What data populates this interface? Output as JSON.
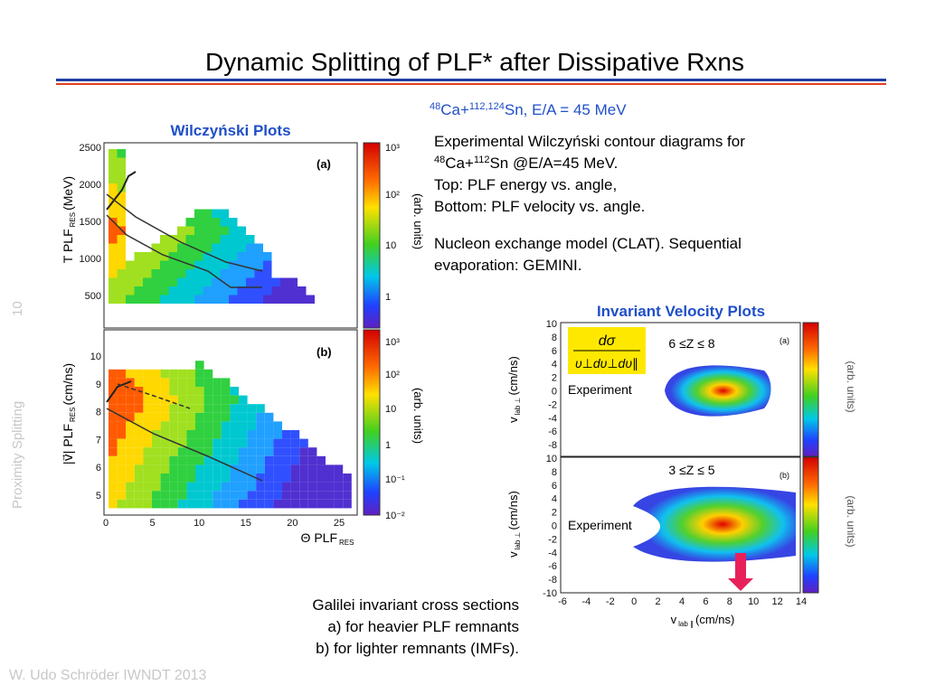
{
  "title": "Dynamic Splitting of PLF* after Dissipative Rxns",
  "reaction": {
    "a1": "48",
    "t1": "Ca+",
    "a2": "112,124",
    "t2": "Sn, E/A = 45 MeV"
  },
  "left_heading": "Wilczyński Plots",
  "description": {
    "line1": "Experimental Wilczyński contour diagrams for",
    "line2": {
      "a1": "48",
      "t1": "Ca+",
      "a2": "112",
      "t2": "Sn @E/A=45 MeV."
    },
    "line3": "Top: PLF energy vs. angle,",
    "line4": "Bottom: PLF velocity vs. angle."
  },
  "model_text": [
    "Nucleon exchange model (CLAT). Sequential",
    "evaporation: GEMINI."
  ],
  "right_heading": "Invariant Velocity Plots",
  "caption": [
    "Galilei invariant cross sections",
    "a) for heavier PLF remnants",
    "b) for lighter remnants (IMFs)."
  ],
  "side_label": "Proximity Splitting",
  "page_number": "10",
  "footer": "W. Udo Schröder IWNDT 2013",
  "wilczynski": {
    "top": {
      "ylabel": "T PLF",
      "ysub": "RES",
      "yunit": "(MeV)",
      "yticks": [
        2500,
        2000,
        1500,
        1000,
        500
      ],
      "panel": "(a)",
      "cbar": [
        "10³",
        "10²",
        "10",
        "1"
      ],
      "cbar_label": "(arb. units)"
    },
    "bottom": {
      "ylabel": "|v⃗| PLF",
      "ysub": "RES",
      "yunit": "(cm/ns)",
      "yticks": [
        10,
        9,
        8,
        7,
        6,
        5
      ],
      "panel": "(b)",
      "cbar": [
        "10³",
        "10²",
        "10",
        "1",
        "10⁻¹",
        "10⁻²"
      ],
      "cbar_label": "(arb. units)"
    },
    "xticks": [
      0,
      5,
      10,
      15,
      20,
      25
    ],
    "xlabel": "Θ PLF",
    "xsub": "RES"
  },
  "invariant": {
    "formula_num": "dσ",
    "formula_den": "υ⊥dυ⊥dυ∥",
    "top": {
      "range": "6 ≤Z ≤ 8",
      "label": "Experiment",
      "panel": "(a)",
      "yticks": [
        10,
        8,
        6,
        4,
        2,
        0,
        -2,
        -4,
        -6,
        -8
      ]
    },
    "bottom": {
      "range": "3 ≤Z ≤ 5",
      "label": "Experiment",
      "panel": "(b)",
      "yticks": [
        10,
        8,
        6,
        4,
        2,
        0,
        -2,
        -4,
        -6,
        -8,
        -10
      ]
    },
    "ylabel": "v",
    "ysub": "lab ⊥",
    "yunit": "(cm/ns)",
    "xticks": [
      -6,
      -4,
      -2,
      0,
      2,
      4,
      6,
      8,
      10,
      12,
      14
    ],
    "xlabel": "v",
    "xsub": "lab ∥",
    "xunit": "(cm/ns)",
    "cbar_label": "(arb. units)"
  }
}
